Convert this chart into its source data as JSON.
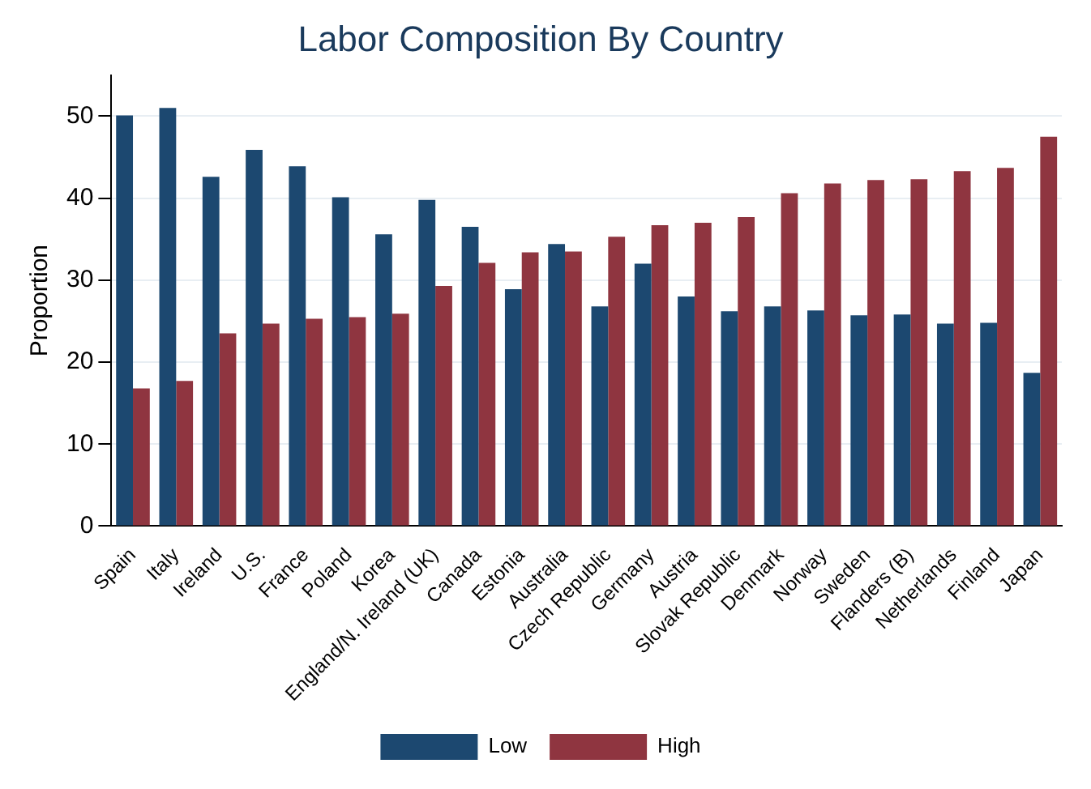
{
  "chart_data": {
    "type": "bar",
    "title": "Labor Composition By Country",
    "ylabel": "Proportion",
    "categories": [
      "Spain",
      "Italy",
      "Ireland",
      "U.S.",
      "France",
      "Poland",
      "Korea",
      "England/N. Ireland (UK)",
      "Canada",
      "Estonia",
      "Australia",
      "Czech Republic",
      "Germany",
      "Austria",
      "Slovak Republic",
      "Denmark",
      "Norway",
      "Sweden",
      "Flanders (B)",
      "Netherlands",
      "Finland",
      "Japan"
    ],
    "series": [
      {
        "name": "Low",
        "color": "#1c4870",
        "values": [
          50.1,
          51.0,
          42.6,
          45.9,
          43.9,
          40.1,
          35.6,
          39.8,
          36.5,
          28.9,
          34.4,
          26.8,
          32.0,
          28.0,
          26.2,
          26.8,
          26.3,
          25.7,
          25.8,
          24.7,
          24.8,
          18.7
        ]
      },
      {
        "name": "High",
        "color": "#8f3540",
        "values": [
          16.8,
          17.7,
          23.5,
          24.7,
          25.3,
          25.5,
          25.9,
          29.3,
          32.1,
          33.4,
          33.5,
          35.3,
          36.7,
          37.0,
          37.7,
          40.6,
          41.8,
          42.2,
          42.3,
          43.3,
          43.7,
          47.5
        ]
      }
    ],
    "ylim": [
      0,
      55
    ],
    "yticks": [
      0,
      10,
      20,
      30,
      40,
      50
    ],
    "grid": "y",
    "legend": "bottom"
  }
}
